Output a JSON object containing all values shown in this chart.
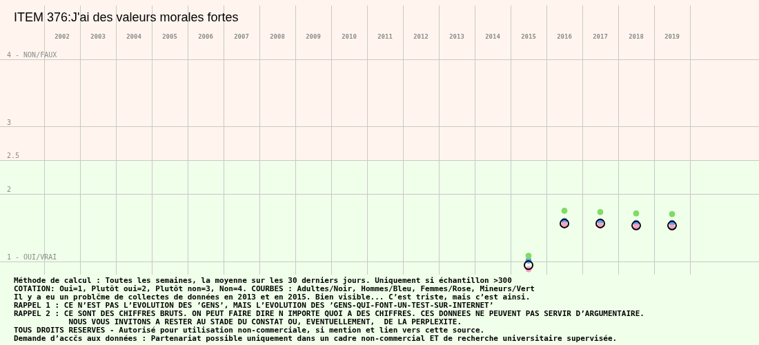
{
  "chart_data": {
    "type": "scatter",
    "title": "ITEM 376:J'ai des valeurs morales fortes",
    "categories": [
      "2002",
      "2003",
      "2004",
      "2005",
      "2006",
      "2007",
      "2008",
      "2009",
      "2010",
      "2011",
      "2012",
      "2013",
      "2014",
      "2015",
      "2016",
      "2017",
      "2018",
      "2019"
    ],
    "series": [
      {
        "color": "#000000",
        "values": [
          null,
          null,
          null,
          null,
          null,
          null,
          null,
          null,
          null,
          null,
          null,
          null,
          null,
          0.94,
          1.56,
          1.56,
          1.53,
          1.53
        ]
      },
      {
        "color": "#80dc64",
        "values": [
          null,
          null,
          null,
          null,
          null,
          null,
          null,
          null,
          null,
          null,
          null,
          null,
          null,
          1.08,
          1.75,
          1.73,
          1.71,
          1.7
        ]
      },
      {
        "color": "#f8a0c8",
        "values": [
          null,
          null,
          null,
          null,
          null,
          null,
          null,
          null,
          null,
          null,
          null,
          null,
          null,
          0.88,
          1.54,
          1.53,
          1.51,
          1.5
        ]
      },
      {
        "color": "#5aa0f0",
        "values": [
          null,
          null,
          null,
          null,
          null,
          null,
          null,
          null,
          null,
          null,
          null,
          null,
          null,
          1.01,
          1.6,
          1.59,
          1.57,
          1.57
        ]
      }
    ],
    "marker": "circle",
    "ylim": [
      0.8,
      4.8
    ],
    "yticks": [
      {
        "value": 1,
        "label": "1 - OUI/VRAI"
      },
      2,
      2.5,
      3,
      {
        "value": 4,
        "label": "4 - NON/FAUX"
      }
    ],
    "grid": true,
    "bands": [
      {
        "axis": "y",
        "from": 2.5,
        "to": 4.8,
        "color": "#fff5ee"
      },
      {
        "axis": "y",
        "from": 0.8,
        "to": 2.5,
        "color": "#f0ffea"
      }
    ],
    "annotations": [
      "Méthode de calcul : Toutes les semaines, la moyenne sur les 30 derniers jours. Uniquement si échantillon >300",
      "COTATION: Oui=1, Plutôt oui=2, Plutôt non=3, Non=4. COURBES : Adultes/Noir, Hommes/Bleu, Femmes/Rose, Mineurs/Vert",
      "Il y a eu un problčme de collectes de données en 2013 et en 2015. Bien visible... C’est triste, mais c’est ainsi.",
      "RAPPEL 1 : CE N’EST PAS L’EVOLUTION DES ’GENS’, MAIS L’EVOLUTION DES ’GENS-QUI-FONT-UN-TEST-SUR-INTERNET’",
      "RAPPEL 2 : CE SONT DES CHIFFRES BRUTS. ON PEUT FAIRE DIRE N IMPORTE QUOI A DES CHIFFRES. CES DONNEES NE PEUVENT PAS SERVIR D’ARGUMENTAIRE.",
      "            NOUS VOUS INVITONS A RESTER AU STADE DU CONSTAT OU, EVENTUELLEMENT,  DE LA PERPLEXITE.",
      "TOUS DROITS RESERVES - Autorisé pour utilisation non-commerciale, si mention et lien vers cette source.",
      "Demande d’accčs aux données : Partenariat possible uniquement dans un cadre non-commercial ET de recherche universitaire supervisée."
    ]
  }
}
